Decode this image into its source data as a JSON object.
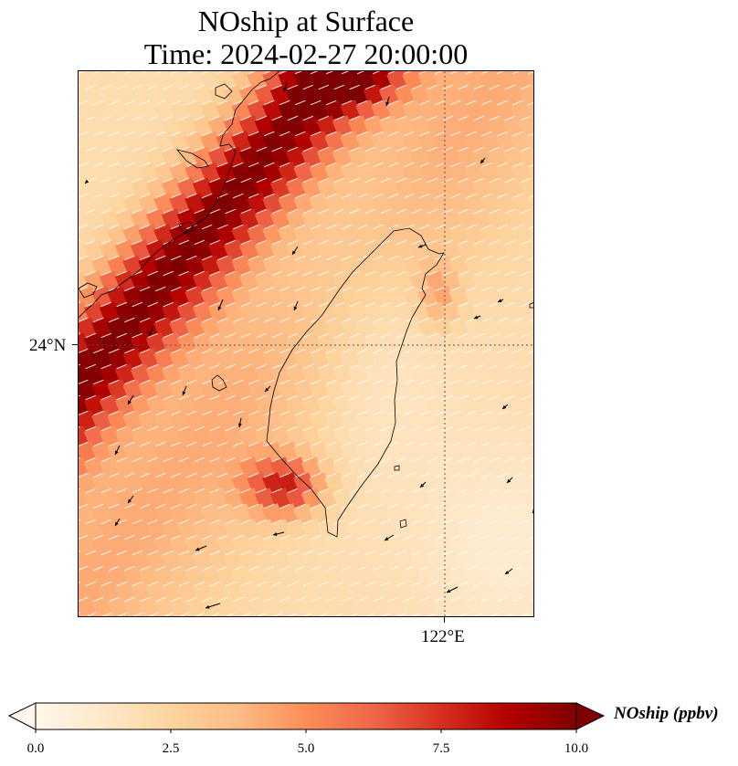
{
  "map": {
    "title_line1": "NOship at Surface",
    "title_line2": "Time: 2024-02-27 20:00:00",
    "lat_tick_label": "24°N",
    "lon_tick_label": "122°E",
    "colormap": "OrRd",
    "colors": [
      "#fff7ec",
      "#fee8c8",
      "#fdd49e",
      "#fdbb84",
      "#fc8d59",
      "#ef6548",
      "#d7301f",
      "#b30000",
      "#7f0000"
    ]
  },
  "colorbar": {
    "label": "NOship (ppbv)",
    "ticks": [
      "0.0",
      "2.5",
      "5.0",
      "7.5",
      "10.0"
    ],
    "range": [
      0,
      10
    ],
    "extend": "both"
  }
}
